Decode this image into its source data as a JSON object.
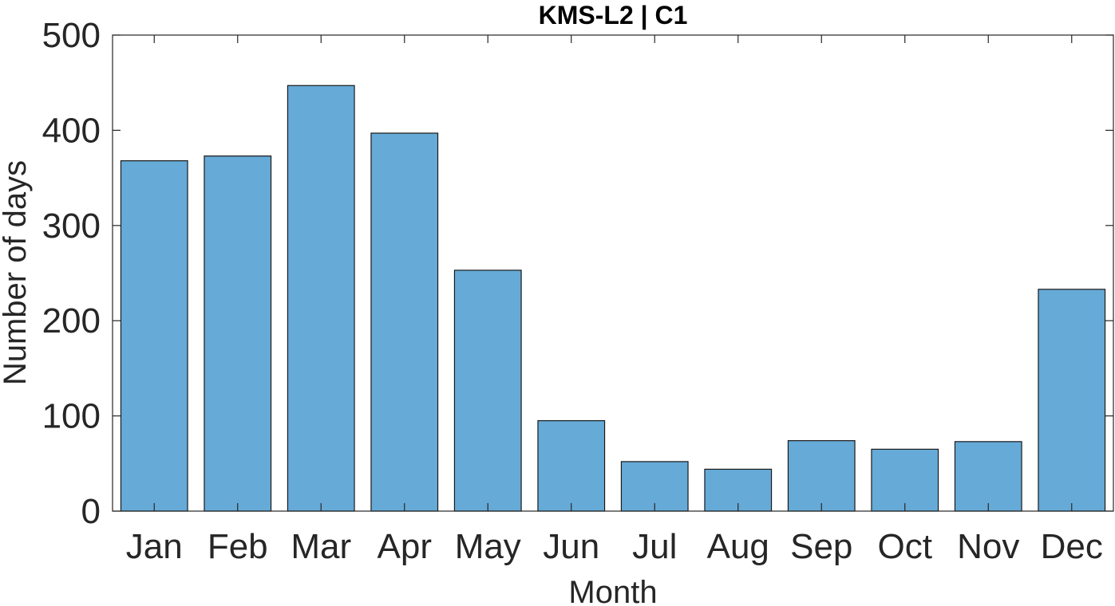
{
  "chart_data": {
    "type": "bar",
    "title": "KMS-L2 | C1",
    "xlabel": "Month",
    "ylabel": "Number of days",
    "categories": [
      "Jan",
      "Feb",
      "Mar",
      "Apr",
      "May",
      "Jun",
      "Jul",
      "Aug",
      "Sep",
      "Oct",
      "Nov",
      "Dec"
    ],
    "values": [
      368,
      373,
      447,
      397,
      253,
      95,
      52,
      44,
      74,
      65,
      73,
      233
    ],
    "ylim": [
      0,
      500
    ],
    "yticks": [
      0,
      100,
      200,
      300,
      400,
      500
    ],
    "ytick_labels": [
      "0",
      "100",
      "200",
      "300",
      "400",
      "500"
    ],
    "grid": false,
    "legend": "none",
    "colors": {
      "bar_fill": "#66aad7",
      "bar_edge": "#1a1a1a",
      "axis": "#262626",
      "background": "#ffffff"
    }
  }
}
